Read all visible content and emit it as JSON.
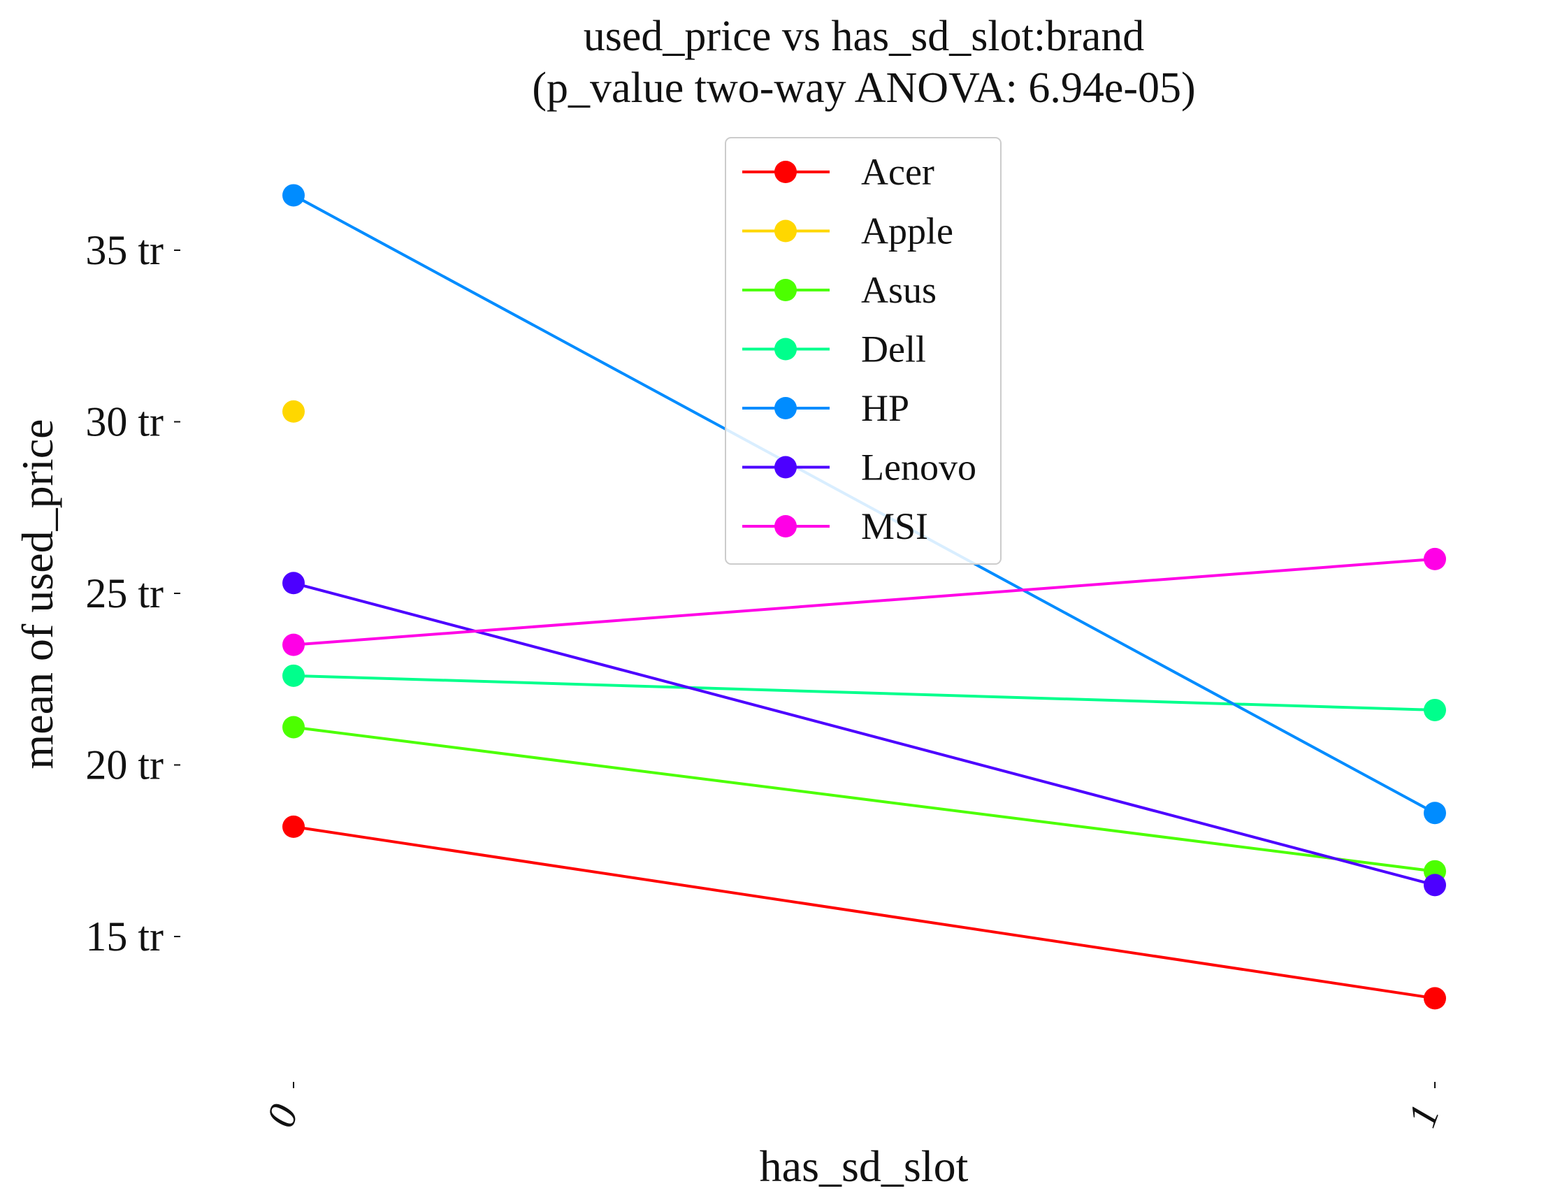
{
  "chart_data": {
    "type": "line",
    "title_line1": "used_price vs has_sd_slot:brand",
    "title_line2": "(p_value two-way ANOVA: 6.94e-05)",
    "xlabel": "has_sd_slot",
    "ylabel": "mean of used_price",
    "categories": [
      "0",
      "1"
    ],
    "yticks": [
      15,
      20,
      25,
      30,
      35
    ],
    "ytick_labels": [
      "15 tr",
      "20 tr",
      "25 tr",
      "30 tr",
      "35 tr"
    ],
    "ylim": [
      10.3,
      37.5
    ],
    "grid": false,
    "legend_position": "top-center",
    "series": [
      {
        "name": "Acer",
        "color": "#ff0000",
        "values": [
          18.2,
          13.2
        ]
      },
      {
        "name": "Apple",
        "color": "#ffd700",
        "values": [
          30.3,
          null
        ]
      },
      {
        "name": "Asus",
        "color": "#4cff00",
        "values": [
          21.1,
          16.9
        ]
      },
      {
        "name": "Dell",
        "color": "#00ff8c",
        "values": [
          22.6,
          21.6
        ]
      },
      {
        "name": "HP",
        "color": "#008cff",
        "values": [
          36.6,
          18.6
        ]
      },
      {
        "name": "Lenovo",
        "color": "#4c00ff",
        "values": [
          25.3,
          16.5
        ]
      },
      {
        "name": "MSI",
        "color": "#ff00e6",
        "values": [
          23.5,
          26.0
        ]
      }
    ]
  }
}
